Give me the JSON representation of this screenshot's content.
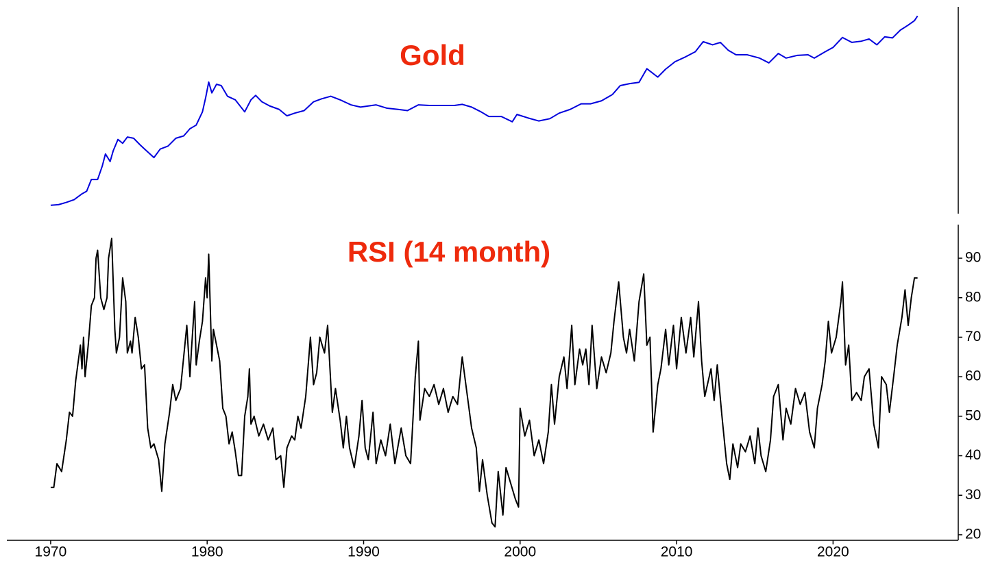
{
  "chart_data": [
    {
      "type": "line",
      "title": "Gold",
      "color": "#0000dd",
      "log_scale": true,
      "xlim": [
        1967.2,
        2028
      ],
      "ylim": [
        28.6,
        4110
      ],
      "x": [
        1970.0,
        1970.5,
        1971.0,
        1971.5,
        1972.0,
        1972.3,
        1972.6,
        1973.0,
        1973.3,
        1973.5,
        1973.8,
        1974.0,
        1974.3,
        1974.6,
        1974.9,
        1975.3,
        1975.7,
        1976.0,
        1976.6,
        1977.0,
        1977.5,
        1978.0,
        1978.5,
        1978.9,
        1979.3,
        1979.7,
        1979.9,
        1980.1,
        1980.3,
        1980.6,
        1980.9,
        1981.3,
        1981.8,
        1982.4,
        1982.8,
        1983.1,
        1983.5,
        1984.0,
        1984.6,
        1985.1,
        1985.6,
        1986.2,
        1986.8,
        1987.3,
        1987.9,
        1988.5,
        1989.2,
        1989.8,
        1990.3,
        1990.8,
        1991.5,
        1992.2,
        1992.8,
        1993.5,
        1994.2,
        1995.0,
        1995.8,
        1996.3,
        1996.9,
        1997.5,
        1998.0,
        1998.8,
        1999.5,
        1999.8,
        2000.5,
        2001.2,
        2001.9,
        2002.5,
        2003.2,
        2003.9,
        2004.5,
        2005.2,
        2005.9,
        2006.4,
        2007.0,
        2007.6,
        2008.1,
        2008.8,
        2009.3,
        2009.9,
        2010.5,
        2011.2,
        2011.7,
        2012.3,
        2012.8,
        2013.3,
        2013.8,
        2014.5,
        2015.3,
        2015.9,
        2016.5,
        2017.0,
        2017.7,
        2018.4,
        2018.8,
        2019.5,
        2020.0,
        2020.6,
        2021.2,
        2021.8,
        2022.3,
        2022.8,
        2023.3,
        2023.8,
        2024.3,
        2024.8,
        2025.2,
        2025.4
      ],
      "values": [
        35,
        35.5,
        37.5,
        40,
        46,
        49,
        65,
        65,
        90,
        120,
        100,
        130,
        170,
        155,
        180,
        175,
        150,
        135,
        110,
        135,
        145,
        175,
        185,
        220,
        240,
        330,
        460,
        675,
        520,
        640,
        620,
        480,
        440,
        330,
        440,
        490,
        420,
        380,
        350,
        300,
        320,
        340,
        420,
        450,
        480,
        440,
        390,
        370,
        380,
        390,
        360,
        350,
        340,
        390,
        385,
        385,
        385,
        395,
        370,
        330,
        295,
        295,
        260,
        310,
        285,
        265,
        280,
        320,
        350,
        400,
        400,
        430,
        500,
        620,
        650,
        670,
        930,
        760,
        920,
        1100,
        1220,
        1400,
        1780,
        1650,
        1750,
        1450,
        1300,
        1300,
        1200,
        1070,
        1340,
        1200,
        1280,
        1300,
        1200,
        1400,
        1550,
        1970,
        1750,
        1800,
        1900,
        1650,
        2000,
        1950,
        2350,
        2650,
        2950,
        3300
      ]
    },
    {
      "type": "line",
      "title": "RSI (14 month)",
      "color": "#000000",
      "log_scale": false,
      "xlim": [
        1967.2,
        2028
      ],
      "xticks": [
        1970,
        1980,
        1990,
        2000,
        2010,
        2020
      ],
      "ylim": [
        18.6,
        98.5
      ],
      "yticks": [
        20,
        30,
        40,
        50,
        60,
        70,
        80,
        90
      ],
      "x": [
        1970.0,
        1970.2,
        1970.4,
        1970.7,
        1971.0,
        1971.2,
        1971.4,
        1971.6,
        1971.9,
        1972.0,
        1972.1,
        1972.2,
        1972.4,
        1972.6,
        1972.8,
        1972.9,
        1973.0,
        1973.2,
        1973.4,
        1973.6,
        1973.7,
        1973.9,
        1974.1,
        1974.2,
        1974.4,
        1974.6,
        1974.8,
        1974.9,
        1975.1,
        1975.2,
        1975.4,
        1975.6,
        1975.8,
        1976.0,
        1976.2,
        1976.4,
        1976.6,
        1976.9,
        1977.1,
        1977.3,
        1977.6,
        1977.8,
        1978.0,
        1978.3,
        1978.5,
        1978.7,
        1978.9,
        1979.0,
        1979.2,
        1979.3,
        1979.5,
        1979.7,
        1979.9,
        1980.0,
        1980.1,
        1980.3,
        1980.4,
        1980.6,
        1980.8,
        1981.0,
        1981.2,
        1981.4,
        1981.6,
        1981.8,
        1982.0,
        1982.2,
        1982.4,
        1982.6,
        1982.7,
        1982.8,
        1983.0,
        1983.3,
        1983.6,
        1983.9,
        1984.2,
        1984.4,
        1984.7,
        1984.9,
        1985.1,
        1985.4,
        1985.6,
        1985.8,
        1986.0,
        1986.3,
        1986.6,
        1986.8,
        1987.0,
        1987.2,
        1987.5,
        1987.7,
        1988.0,
        1988.2,
        1988.5,
        1988.7,
        1988.9,
        1989.1,
        1989.4,
        1989.7,
        1989.9,
        1990.1,
        1990.3,
        1990.6,
        1990.8,
        1991.1,
        1991.4,
        1991.7,
        1992.0,
        1992.4,
        1992.7,
        1993.0,
        1993.3,
        1993.5,
        1993.6,
        1993.9,
        1994.2,
        1994.5,
        1994.8,
        1995.1,
        1995.4,
        1995.7,
        1996.0,
        1996.3,
        1996.6,
        1996.9,
        1997.2,
        1997.4,
        1997.6,
        1997.9,
        1998.2,
        1998.4,
        1998.6,
        1998.9,
        1999.1,
        1999.4,
        1999.7,
        1999.9,
        2000.0,
        2000.3,
        2000.6,
        2000.9,
        2001.2,
        2001.5,
        2001.8,
        2002.0,
        2002.2,
        2002.5,
        2002.8,
        2003.0,
        2003.3,
        2003.5,
        2003.8,
        2004.0,
        2004.2,
        2004.4,
        2004.6,
        2004.9,
        2005.2,
        2005.5,
        2005.8,
        2006.0,
        2006.3,
        2006.6,
        2006.8,
        2007.0,
        2007.3,
        2007.6,
        2007.9,
        2008.1,
        2008.3,
        2008.5,
        2008.8,
        2009.0,
        2009.3,
        2009.5,
        2009.8,
        2010.0,
        2010.3,
        2010.6,
        2010.9,
        2011.1,
        2011.4,
        2011.6,
        2011.8,
        2012.2,
        2012.4,
        2012.6,
        2012.9,
        2013.2,
        2013.4,
        2013.6,
        2013.9,
        2014.1,
        2014.4,
        2014.7,
        2015.0,
        2015.2,
        2015.4,
        2015.7,
        2016.0,
        2016.2,
        2016.5,
        2016.8,
        2017.0,
        2017.3,
        2017.6,
        2017.9,
        2018.2,
        2018.5,
        2018.8,
        2019.0,
        2019.3,
        2019.5,
        2019.7,
        2019.9,
        2020.2,
        2020.5,
        2020.6,
        2020.8,
        2021.0,
        2021.2,
        2021.5,
        2021.8,
        2022.0,
        2022.3,
        2022.6,
        2022.9,
        2023.1,
        2023.4,
        2023.6,
        2023.9,
        2024.1,
        2024.4,
        2024.6,
        2024.8,
        2025.0,
        2025.2,
        2025.4
      ],
      "values": [
        32,
        32,
        38,
        36,
        44,
        51,
        50,
        59,
        68,
        62,
        70,
        60,
        68,
        78,
        80,
        90,
        92,
        80,
        77,
        80,
        90,
        95,
        72,
        66,
        70,
        85,
        79,
        66,
        69,
        66,
        75,
        70,
        62,
        63,
        47,
        42,
        43,
        39,
        31,
        43,
        51,
        58,
        54,
        57,
        65,
        73,
        60,
        67,
        79,
        63,
        69,
        74,
        85,
        80,
        91,
        64,
        72,
        68,
        64,
        52,
        50,
        43,
        46,
        41,
        35,
        35,
        50,
        55,
        62,
        48,
        50,
        45,
        48,
        44,
        47,
        39,
        40,
        32,
        42,
        45,
        44,
        50,
        47,
        55,
        70,
        58,
        61,
        70,
        66,
        73,
        51,
        57,
        49,
        42,
        50,
        42,
        37,
        45,
        54,
        42,
        39,
        51,
        38,
        44,
        40,
        48,
        38,
        47,
        40,
        38,
        60,
        69,
        49,
        57,
        55,
        58,
        53,
        57,
        51,
        55,
        53,
        65,
        56,
        47,
        42,
        31,
        39,
        30,
        23,
        22,
        36,
        25,
        37,
        33,
        29,
        27,
        52,
        45,
        49,
        40,
        44,
        38,
        46,
        58,
        48,
        60,
        65,
        57,
        73,
        58,
        67,
        63,
        67,
        58,
        73,
        57,
        65,
        61,
        66,
        74,
        84,
        70,
        66,
        72,
        64,
        79,
        86,
        68,
        70,
        46,
        58,
        62,
        72,
        63,
        73,
        62,
        75,
        66,
        75,
        65,
        79,
        64,
        55,
        62,
        54,
        63,
        50,
        38,
        34,
        43,
        37,
        43,
        41,
        45,
        38,
        47,
        40,
        36,
        44,
        55,
        58,
        44,
        52,
        48,
        57,
        53,
        56,
        46,
        42,
        52,
        58,
        64,
        74,
        66,
        70,
        79,
        84,
        63,
        68,
        54,
        56,
        54,
        60,
        62,
        48,
        42,
        60,
        58,
        51,
        61,
        68,
        75,
        82,
        73,
        80,
        85,
        85
      ]
    }
  ]
}
